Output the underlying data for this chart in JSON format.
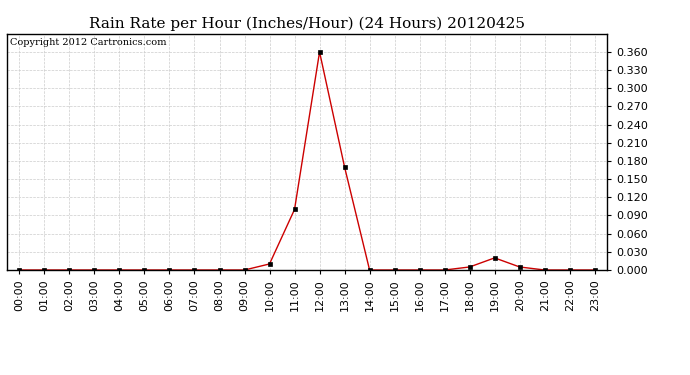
{
  "title": "Rain Rate per Hour (Inches/Hour) (24 Hours) 20120425",
  "copyright": "Copyright 2012 Cartronics.com",
  "line_color": "#cc0000",
  "marker_color": "#000000",
  "background_color": "#ffffff",
  "grid_color": "#cccccc",
  "hours": [
    0,
    1,
    2,
    3,
    4,
    5,
    6,
    7,
    8,
    9,
    10,
    11,
    12,
    13,
    14,
    15,
    16,
    17,
    18,
    19,
    20,
    21,
    22,
    23
  ],
  "values": [
    0.0,
    0.0,
    0.0,
    0.0,
    0.0,
    0.0,
    0.0,
    0.0,
    0.0,
    0.0,
    0.01,
    0.1,
    0.36,
    0.17,
    0.0,
    0.0,
    0.0,
    0.0,
    0.005,
    0.02,
    0.005,
    0.0,
    0.0,
    0.0
  ],
  "ylim": [
    0.0,
    0.39
  ],
  "yticks": [
    0.0,
    0.03,
    0.06,
    0.09,
    0.12,
    0.15,
    0.18,
    0.21,
    0.24,
    0.27,
    0.3,
    0.33,
    0.36
  ],
  "xlabel_rotation": 90,
  "title_fontsize": 11,
  "tick_fontsize": 8,
  "copyright_fontsize": 7,
  "border_color": "#000000"
}
